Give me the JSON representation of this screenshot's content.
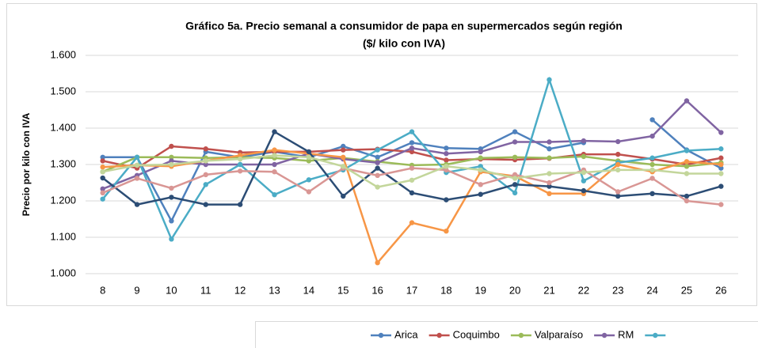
{
  "chart_data": {
    "type": "line",
    "title": "Gráfico 5a. Precio semanal a consumidor de papa en supermercados según región",
    "subtitle": "($/ kilo con IVA)",
    "y_label": "Precio por kilo con IVA",
    "categories": [
      "8",
      "9",
      "10",
      "11",
      "12",
      "13",
      "14",
      "15",
      "16",
      "17",
      "18",
      "19",
      "20",
      "21",
      "22",
      "23",
      "24",
      "25",
      "26"
    ],
    "ylim": [
      1000,
      1600
    ],
    "yticks": [
      {
        "value": 1000,
        "label": "1.000"
      },
      {
        "value": 1100,
        "label": "1.100"
      },
      {
        "value": 1200,
        "label": "1.200"
      },
      {
        "value": 1300,
        "label": "1.300"
      },
      {
        "value": 1400,
        "label": "1.400"
      },
      {
        "value": 1500,
        "label": "1.500"
      },
      {
        "value": 1600,
        "label": "1.600"
      }
    ],
    "grid": true,
    "legend": "bottom",
    "series": [
      {
        "name": "Arica",
        "color": "#4f81bd",
        "legend": true,
        "values": [
          1320,
          1320,
          1145,
          1335,
          1320,
          1335,
          1320,
          1350,
          1320,
          1360,
          1345,
          1343,
          1390,
          1343,
          1360,
          null,
          1423,
          1340,
          1290
        ]
      },
      {
        "name": "Coquimbo",
        "color": "#c0504d",
        "legend": true,
        "values": [
          1310,
          1290,
          1350,
          1343,
          1333,
          1335,
          1335,
          1340,
          1342,
          1335,
          1312,
          1315,
          1313,
          1317,
          1328,
          1328,
          1315,
          1300,
          1318
        ]
      },
      {
        "name": "Valparaíso",
        "color": "#9bbb59",
        "legend": true,
        "values": [
          1280,
          1320,
          1320,
          1318,
          1320,
          1318,
          1310,
          1318,
          1308,
          1298,
          1300,
          1318,
          1320,
          1318,
          1322,
          1310,
          1300,
          1295,
          1305
        ]
      },
      {
        "name": "RM",
        "color": "#8064a2",
        "legend": true,
        "values": [
          1233,
          1270,
          1310,
          1300,
          1300,
          1300,
          1330,
          1315,
          1305,
          1345,
          1330,
          1335,
          1362,
          1362,
          1365,
          1363,
          1378,
          1475,
          1388
        ]
      },
      {
        "color": "#4bacc6",
        "legend": true,
        "values": [
          1205,
          1320,
          1095,
          1245,
          1300,
          1217,
          1258,
          1285,
          1340,
          1390,
          1278,
          1295,
          1222,
          1533,
          1255,
          1305,
          1318,
          1338,
          1343
        ]
      },
      {
        "color": "#f79646",
        "values": [
          1293,
          1298,
          1295,
          1310,
          1325,
          1340,
          1330,
          1320,
          1030,
          1140,
          1117,
          1280,
          1268,
          1220,
          1220,
          1300,
          1280,
          1308,
          1300
        ]
      },
      {
        "color": "#2c4d75",
        "values": [
          1263,
          1190,
          1210,
          1190,
          1190,
          1390,
          1335,
          1213,
          1290,
          1222,
          1203,
          1218,
          1245,
          1240,
          1228,
          1213,
          1220,
          1213,
          1240
        ]
      },
      {
        "color": "#d99694",
        "values": [
          1222,
          1262,
          1235,
          1272,
          1282,
          1280,
          1225,
          1290,
          1270,
          1290,
          1285,
          1245,
          1272,
          1250,
          1285,
          1225,
          1262,
          1200,
          1190
        ]
      },
      {
        "color": "#c3d69b",
        "values": [
          1280,
          1298,
          1300,
          1310,
          1315,
          1325,
          1320,
          1295,
          1238,
          1257,
          1295,
          1285,
          1262,
          1275,
          1278,
          1285,
          1285,
          1275,
          1275
        ]
      }
    ]
  }
}
